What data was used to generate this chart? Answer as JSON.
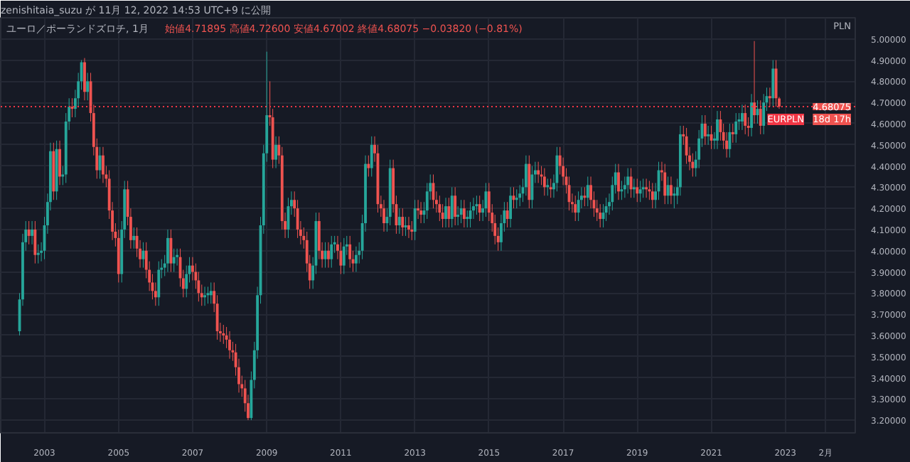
{
  "chart_data": {
    "type": "candlestick",
    "title": "ユーロ／ポーランドズロチ, 1月",
    "subtitle": "始値4.71895 高値4.72600 安値4.67002 終値4.68075 −0.03820 (−0.81%)",
    "ylabel": "PLN",
    "annotations": [
      "zenishitaia_suzu が 11月 12, 2022 14:53 UTC+9 に公開",
      {
        "text": "4.68075",
        "y": 4.68075
      },
      {
        "text": "18d 17h",
        "y": 4.68075
      }
    ],
    "x": [
      "2002-05-01",
      "2002-06-01",
      "2002-07-01",
      "2002-08-01",
      "2002-09-01",
      "2002-10-01",
      "2002-11-01",
      "2002-12-01",
      "2003-01-01",
      "2003-02-01",
      "2003-03-01",
      "2003-04-01",
      "2003-05-01",
      "2003-06-01",
      "2003-07-01",
      "2003-08-01",
      "2003-09-01",
      "2003-10-01",
      "2003-11-01",
      "2003-12-01",
      "2004-01-01",
      "2004-02-01",
      "2004-03-01",
      "2004-04-01",
      "2004-05-01",
      "2004-06-01",
      "2004-07-01",
      "2004-08-01",
      "2004-09-01",
      "2004-10-01",
      "2004-11-01",
      "2004-12-01",
      "2005-01-01",
      "2005-02-01",
      "2005-03-01",
      "2005-04-01",
      "2005-05-01",
      "2005-06-01",
      "2005-07-01",
      "2005-08-01",
      "2005-09-01",
      "2005-10-01",
      "2005-11-01",
      "2005-12-01",
      "2006-01-01",
      "2006-02-01",
      "2006-03-01",
      "2006-04-01",
      "2006-05-01",
      "2006-06-01",
      "2006-07-01",
      "2006-08-01",
      "2006-09-01",
      "2006-10-01",
      "2006-11-01",
      "2006-12-01",
      "2007-01-01",
      "2007-02-01",
      "2007-03-01",
      "2007-04-01",
      "2007-05-01",
      "2007-06-01",
      "2007-07-01",
      "2007-08-01",
      "2007-09-01",
      "2007-10-01",
      "2007-11-01",
      "2007-12-01",
      "2008-01-01",
      "2008-02-01",
      "2008-03-01",
      "2008-04-01",
      "2008-05-01",
      "2008-06-01",
      "2008-07-01",
      "2008-08-01",
      "2008-09-01",
      "2008-10-01",
      "2008-11-01",
      "2008-12-01",
      "2009-01-01",
      "2009-02-01",
      "2009-03-01",
      "2009-04-01",
      "2009-05-01",
      "2009-06-01",
      "2009-07-01",
      "2009-08-01",
      "2009-09-01",
      "2009-10-01",
      "2009-11-01",
      "2009-12-01",
      "2010-01-01",
      "2010-02-01",
      "2010-03-01",
      "2010-04-01",
      "2010-05-01",
      "2010-06-01",
      "2010-07-01",
      "2010-08-01",
      "2010-09-01",
      "2010-10-01",
      "2010-11-01",
      "2010-12-01",
      "2011-01-01",
      "2011-02-01",
      "2011-03-01",
      "2011-04-01",
      "2011-05-01",
      "2011-06-01",
      "2011-07-01",
      "2011-08-01",
      "2011-09-01",
      "2011-10-01",
      "2011-11-01",
      "2011-12-01",
      "2012-01-01",
      "2012-02-01",
      "2012-03-01",
      "2012-04-01",
      "2012-05-01",
      "2012-06-01",
      "2012-07-01",
      "2012-08-01",
      "2012-09-01",
      "2012-10-01",
      "2012-11-01",
      "2012-12-01",
      "2013-01-01",
      "2013-02-01",
      "2013-03-01",
      "2013-04-01",
      "2013-05-01",
      "2013-06-01",
      "2013-07-01",
      "2013-08-01",
      "2013-09-01",
      "2013-10-01",
      "2013-11-01",
      "2013-12-01",
      "2014-01-01",
      "2014-02-01",
      "2014-03-01",
      "2014-04-01",
      "2014-05-01",
      "2014-06-01",
      "2014-07-01",
      "2014-08-01",
      "2014-09-01",
      "2014-10-01",
      "2014-11-01",
      "2014-12-01",
      "2015-01-01",
      "2015-02-01",
      "2015-03-01",
      "2015-04-01",
      "2015-05-01",
      "2015-06-01",
      "2015-07-01",
      "2015-08-01",
      "2015-09-01",
      "2015-10-01",
      "2015-11-01",
      "2015-12-01",
      "2016-01-01",
      "2016-02-01",
      "2016-03-01",
      "2016-04-01",
      "2016-05-01",
      "2016-06-01",
      "2016-07-01",
      "2016-08-01",
      "2016-09-01",
      "2016-10-01",
      "2016-11-01",
      "2016-12-01",
      "2017-01-01",
      "2017-02-01",
      "2017-03-01",
      "2017-04-01",
      "2017-05-01",
      "2017-06-01",
      "2017-07-01",
      "2017-08-01",
      "2017-09-01",
      "2017-10-01",
      "2017-11-01",
      "2017-12-01",
      "2018-01-01",
      "2018-02-01",
      "2018-03-01",
      "2018-04-01",
      "2018-05-01",
      "2018-06-01",
      "2018-07-01",
      "2018-08-01",
      "2018-09-01",
      "2018-10-01",
      "2018-11-01",
      "2018-12-01",
      "2019-01-01",
      "2019-02-01",
      "2019-03-01",
      "2019-04-01",
      "2019-05-01",
      "2019-06-01",
      "2019-07-01",
      "2019-08-01",
      "2019-09-01",
      "2019-10-01",
      "2019-11-01",
      "2019-12-01",
      "2020-01-01",
      "2020-02-01",
      "2020-03-01",
      "2020-04-01",
      "2020-05-01",
      "2020-06-01",
      "2020-07-01",
      "2020-08-01",
      "2020-09-01",
      "2020-10-01",
      "2020-11-01",
      "2020-12-01",
      "2021-01-01",
      "2021-02-01",
      "2021-03-01",
      "2021-04-01",
      "2021-05-01",
      "2021-06-01",
      "2021-07-01",
      "2021-08-01",
      "2021-09-01",
      "2021-10-01",
      "2021-11-01",
      "2021-12-01",
      "2022-01-01",
      "2022-02-01",
      "2022-03-01",
      "2022-04-01",
      "2022-05-01",
      "2022-06-01",
      "2022-07-01",
      "2022-08-01",
      "2022-09-01",
      "2022-10-01",
      "2022-11-01"
    ],
    "ohlc": [
      [
        3.62,
        3.8,
        3.6,
        3.77
      ],
      [
        3.77,
        4.08,
        3.74,
        4.04
      ],
      [
        4.04,
        4.14,
        4.0,
        4.1
      ],
      [
        4.1,
        4.14,
        4.03,
        4.07
      ],
      [
        4.07,
        4.14,
        4.03,
        4.1
      ],
      [
        4.1,
        4.14,
        3.94,
        3.98
      ],
      [
        3.98,
        4.03,
        3.94,
        3.99
      ],
      [
        3.99,
        4.04,
        3.95,
        4.0
      ],
      [
        4.0,
        4.16,
        3.96,
        4.12
      ],
      [
        4.12,
        4.27,
        4.08,
        4.23
      ],
      [
        4.23,
        4.51,
        4.19,
        4.47
      ],
      [
        4.47,
        4.51,
        4.24,
        4.28
      ],
      [
        4.28,
        4.52,
        4.24,
        4.48
      ],
      [
        4.48,
        4.52,
        4.31,
        4.35
      ],
      [
        4.35,
        4.4,
        4.31,
        4.36
      ],
      [
        4.36,
        4.65,
        4.32,
        4.61
      ],
      [
        4.61,
        4.72,
        4.57,
        4.68
      ],
      [
        4.68,
        4.72,
        4.63,
        4.67
      ],
      [
        4.67,
        4.76,
        4.63,
        4.72
      ],
      [
        4.72,
        4.84,
        4.68,
        4.8
      ],
      [
        4.8,
        4.9,
        4.76,
        4.89
      ],
      [
        4.89,
        4.91,
        4.71,
        4.75
      ],
      [
        4.75,
        4.84,
        4.71,
        4.8
      ],
      [
        4.8,
        4.84,
        4.61,
        4.65
      ],
      [
        4.65,
        4.69,
        4.45,
        4.49
      ],
      [
        4.49,
        4.53,
        4.34,
        4.38
      ],
      [
        4.38,
        4.49,
        4.34,
        4.45
      ],
      [
        4.45,
        4.49,
        4.32,
        4.36
      ],
      [
        4.36,
        4.4,
        4.3,
        4.34
      ],
      [
        4.34,
        4.38,
        4.15,
        4.19
      ],
      [
        4.19,
        4.23,
        4.05,
        4.09
      ],
      [
        4.09,
        4.13,
        4.02,
        4.06
      ],
      [
        4.06,
        4.1,
        3.85,
        3.89
      ],
      [
        3.89,
        4.14,
        3.85,
        4.1
      ],
      [
        4.1,
        4.33,
        4.06,
        4.29
      ],
      [
        4.29,
        4.33,
        4.12,
        4.16
      ],
      [
        4.16,
        4.2,
        4.01,
        4.05
      ],
      [
        4.05,
        4.11,
        4.01,
        4.07
      ],
      [
        4.07,
        4.11,
        3.97,
        4.01
      ],
      [
        4.01,
        4.05,
        3.92,
        3.96
      ],
      [
        3.96,
        4.04,
        3.92,
        4.0
      ],
      [
        4.0,
        4.04,
        3.87,
        3.91
      ],
      [
        3.91,
        3.95,
        3.81,
        3.85
      ],
      [
        3.85,
        3.89,
        3.77,
        3.81
      ],
      [
        3.81,
        3.85,
        3.74,
        3.78
      ],
      [
        3.78,
        3.95,
        3.74,
        3.91
      ],
      [
        3.91,
        3.96,
        3.87,
        3.92
      ],
      [
        3.92,
        3.98,
        3.88,
        3.94
      ],
      [
        3.94,
        4.1,
        3.9,
        4.06
      ],
      [
        4.06,
        4.1,
        3.9,
        3.94
      ],
      [
        3.94,
        4.01,
        3.9,
        3.97
      ],
      [
        3.97,
        4.01,
        3.93,
        3.98
      ],
      [
        3.97,
        4.01,
        3.83,
        3.87
      ],
      [
        3.87,
        3.91,
        3.78,
        3.82
      ],
      [
        3.82,
        3.93,
        3.78,
        3.89
      ],
      [
        3.89,
        3.97,
        3.85,
        3.93
      ],
      [
        3.93,
        3.97,
        3.86,
        3.9
      ],
      [
        3.9,
        3.94,
        3.82,
        3.86
      ],
      [
        3.86,
        3.9,
        3.76,
        3.8
      ],
      [
        3.8,
        3.84,
        3.74,
        3.78
      ],
      [
        3.78,
        3.83,
        3.74,
        3.79
      ],
      [
        3.79,
        3.83,
        3.75,
        3.8
      ],
      [
        3.79,
        3.85,
        3.75,
        3.81
      ],
      [
        3.81,
        3.85,
        3.71,
        3.75
      ],
      [
        3.75,
        3.79,
        3.58,
        3.62
      ],
      [
        3.62,
        3.66,
        3.57,
        3.61
      ],
      [
        3.61,
        3.65,
        3.56,
        3.6
      ],
      [
        3.6,
        3.64,
        3.54,
        3.58
      ],
      [
        3.58,
        3.62,
        3.49,
        3.53
      ],
      [
        3.53,
        3.57,
        3.48,
        3.52
      ],
      [
        3.52,
        3.56,
        3.41,
        3.45
      ],
      [
        3.45,
        3.49,
        3.33,
        3.37
      ],
      [
        3.37,
        3.41,
        3.31,
        3.35
      ],
      [
        3.35,
        3.39,
        3.24,
        3.28
      ],
      [
        3.28,
        3.32,
        3.2,
        3.21
      ],
      [
        3.21,
        3.43,
        3.2,
        3.39
      ],
      [
        3.39,
        3.57,
        3.35,
        3.53
      ],
      [
        3.53,
        3.83,
        3.49,
        3.79
      ],
      [
        3.79,
        4.16,
        3.75,
        4.12
      ],
      [
        4.12,
        4.5,
        4.08,
        4.46
      ],
      [
        4.46,
        4.94,
        4.42,
        4.64
      ],
      [
        4.64,
        4.8,
        4.59,
        4.63
      ],
      [
        4.63,
        4.67,
        4.39,
        4.43
      ],
      [
        4.43,
        4.54,
        4.39,
        4.5
      ],
      [
        4.5,
        4.54,
        4.41,
        4.45
      ],
      [
        4.45,
        4.49,
        4.1,
        4.14
      ],
      [
        4.14,
        4.18,
        4.06,
        4.1
      ],
      [
        4.1,
        4.25,
        4.06,
        4.21
      ],
      [
        4.21,
        4.28,
        4.17,
        4.24
      ],
      [
        4.24,
        4.28,
        4.16,
        4.2
      ],
      [
        4.2,
        4.24,
        4.06,
        4.1
      ],
      [
        4.1,
        4.14,
        4.03,
        4.07
      ],
      [
        4.07,
        4.11,
        4.01,
        4.05
      ],
      [
        4.05,
        4.09,
        3.9,
        3.94
      ],
      [
        3.94,
        3.98,
        3.82,
        3.86
      ],
      [
        3.86,
        3.97,
        3.82,
        3.93
      ],
      [
        3.93,
        4.18,
        3.89,
        4.14
      ],
      [
        4.14,
        4.18,
        3.96,
        4.0
      ],
      [
        4.0,
        4.04,
        3.92,
        3.96
      ],
      [
        3.96,
        4.04,
        3.92,
        4.0
      ],
      [
        4.0,
        4.04,
        3.92,
        3.96
      ],
      [
        3.96,
        4.07,
        3.92,
        4.03
      ],
      [
        4.03,
        4.07,
        3.99,
        4.04
      ],
      [
        4.03,
        4.07,
        3.96,
        4.0
      ],
      [
        4.0,
        4.04,
        3.89,
        3.93
      ],
      [
        3.93,
        4.06,
        3.89,
        4.02
      ],
      [
        4.02,
        4.07,
        3.98,
        4.03
      ],
      [
        4.03,
        4.07,
        3.92,
        3.96
      ],
      [
        3.96,
        4.0,
        3.9,
        3.94
      ],
      [
        3.94,
        4.02,
        3.9,
        3.98
      ],
      [
        3.98,
        4.04,
        3.94,
        4.0
      ],
      [
        4.0,
        4.17,
        3.96,
        4.13
      ],
      [
        4.13,
        4.45,
        4.09,
        4.41
      ],
      [
        4.41,
        4.45,
        4.35,
        4.39
      ],
      [
        4.39,
        4.54,
        4.35,
        4.5
      ],
      [
        4.5,
        4.54,
        4.42,
        4.46
      ],
      [
        4.46,
        4.5,
        4.18,
        4.22
      ],
      [
        4.22,
        4.26,
        4.16,
        4.2
      ],
      [
        4.2,
        4.24,
        4.09,
        4.13
      ],
      [
        4.13,
        4.2,
        4.09,
        4.16
      ],
      [
        4.16,
        4.43,
        4.12,
        4.39
      ],
      [
        4.39,
        4.43,
        4.18,
        4.22
      ],
      [
        4.22,
        4.26,
        4.08,
        4.12
      ],
      [
        4.12,
        4.2,
        4.08,
        4.16
      ],
      [
        4.16,
        4.2,
        4.07,
        4.11
      ],
      [
        4.11,
        4.16,
        4.07,
        4.12
      ],
      [
        4.12,
        4.16,
        4.06,
        4.1
      ],
      [
        4.1,
        4.14,
        4.05,
        4.09
      ],
      [
        4.09,
        4.24,
        4.05,
        4.2
      ],
      [
        4.2,
        4.24,
        4.15,
        4.19
      ],
      [
        4.19,
        4.23,
        4.13,
        4.17
      ],
      [
        4.17,
        4.23,
        4.13,
        4.19
      ],
      [
        4.19,
        4.32,
        4.15,
        4.28
      ],
      [
        4.28,
        4.36,
        4.24,
        4.32
      ],
      [
        4.32,
        4.36,
        4.2,
        4.24
      ],
      [
        4.24,
        4.28,
        4.18,
        4.22
      ],
      [
        4.22,
        4.26,
        4.14,
        4.18
      ],
      [
        4.18,
        4.22,
        4.11,
        4.15
      ],
      [
        4.15,
        4.25,
        4.11,
        4.21
      ],
      [
        4.21,
        4.25,
        4.11,
        4.15
      ],
      [
        4.15,
        4.3,
        4.11,
        4.26
      ],
      [
        4.26,
        4.3,
        4.12,
        4.16
      ],
      [
        4.16,
        4.21,
        4.12,
        4.17
      ],
      [
        4.17,
        4.24,
        4.13,
        4.2
      ],
      [
        4.2,
        4.24,
        4.11,
        4.15
      ],
      [
        4.15,
        4.19,
        4.11,
        4.16
      ],
      [
        4.15,
        4.23,
        4.11,
        4.19
      ],
      [
        4.19,
        4.25,
        4.15,
        4.21
      ],
      [
        4.21,
        4.26,
        4.17,
        4.22
      ],
      [
        4.22,
        4.26,
        4.14,
        4.18
      ],
      [
        4.18,
        4.24,
        4.14,
        4.2
      ],
      [
        4.2,
        4.32,
        4.16,
        4.28
      ],
      [
        4.28,
        4.32,
        4.14,
        4.18
      ],
      [
        4.18,
        4.22,
        4.09,
        4.13
      ],
      [
        4.13,
        4.17,
        4.03,
        4.07
      ],
      [
        4.07,
        4.11,
        4.0,
        4.04
      ],
      [
        4.04,
        4.17,
        4.0,
        4.13
      ],
      [
        4.13,
        4.23,
        4.09,
        4.19
      ],
      [
        4.19,
        4.23,
        4.11,
        4.15
      ],
      [
        4.15,
        4.3,
        4.11,
        4.26
      ],
      [
        4.26,
        4.3,
        4.2,
        4.24
      ],
      [
        4.24,
        4.29,
        4.2,
        4.25
      ],
      [
        4.25,
        4.31,
        4.21,
        4.27
      ],
      [
        4.27,
        4.34,
        4.23,
        4.3
      ],
      [
        4.3,
        4.45,
        4.26,
        4.41
      ],
      [
        4.41,
        4.45,
        4.2,
        4.24
      ],
      [
        4.24,
        4.4,
        4.2,
        4.36
      ],
      [
        4.36,
        4.42,
        4.32,
        4.38
      ],
      [
        4.38,
        4.42,
        4.32,
        4.36
      ],
      [
        4.36,
        4.4,
        4.31,
        4.35
      ],
      [
        4.35,
        4.39,
        4.26,
        4.3
      ],
      [
        4.3,
        4.34,
        4.26,
        4.31
      ],
      [
        4.3,
        4.34,
        4.25,
        4.29
      ],
      [
        4.29,
        4.36,
        4.25,
        4.32
      ],
      [
        4.32,
        4.49,
        4.28,
        4.45
      ],
      [
        4.45,
        4.49,
        4.36,
        4.4
      ],
      [
        4.4,
        4.44,
        4.31,
        4.35
      ],
      [
        4.35,
        4.39,
        4.27,
        4.31
      ],
      [
        4.31,
        4.35,
        4.19,
        4.23
      ],
      [
        4.23,
        4.27,
        4.18,
        4.22
      ],
      [
        4.22,
        4.26,
        4.14,
        4.18
      ],
      [
        4.18,
        4.28,
        4.14,
        4.24
      ],
      [
        4.24,
        4.3,
        4.2,
        4.26
      ],
      [
        4.26,
        4.3,
        4.21,
        4.25
      ],
      [
        4.25,
        4.35,
        4.21,
        4.31
      ],
      [
        4.31,
        4.35,
        4.2,
        4.24
      ],
      [
        4.24,
        4.28,
        4.16,
        4.2
      ],
      [
        4.2,
        4.24,
        4.14,
        4.18
      ],
      [
        4.18,
        4.22,
        4.11,
        4.15
      ],
      [
        4.15,
        4.22,
        4.11,
        4.18
      ],
      [
        4.18,
        4.25,
        4.14,
        4.21
      ],
      [
        4.21,
        4.27,
        4.17,
        4.23
      ],
      [
        4.23,
        4.35,
        4.19,
        4.31
      ],
      [
        4.31,
        4.41,
        4.27,
        4.37
      ],
      [
        4.37,
        4.41,
        4.24,
        4.28
      ],
      [
        4.28,
        4.33,
        4.24,
        4.29
      ],
      [
        4.29,
        4.35,
        4.25,
        4.31
      ],
      [
        4.31,
        4.39,
        4.27,
        4.35
      ],
      [
        4.35,
        4.39,
        4.25,
        4.29
      ],
      [
        4.29,
        4.34,
        4.25,
        4.3
      ],
      [
        4.3,
        4.34,
        4.23,
        4.27
      ],
      [
        4.27,
        4.33,
        4.23,
        4.29
      ],
      [
        4.29,
        4.34,
        4.25,
        4.3
      ],
      [
        4.3,
        4.34,
        4.25,
        4.29
      ],
      [
        4.29,
        4.33,
        4.24,
        4.28
      ],
      [
        4.28,
        4.32,
        4.2,
        4.24
      ],
      [
        4.24,
        4.32,
        4.2,
        4.28
      ],
      [
        4.28,
        4.42,
        4.24,
        4.38
      ],
      [
        4.38,
        4.42,
        4.33,
        4.37
      ],
      [
        4.37,
        4.41,
        4.22,
        4.26
      ],
      [
        4.26,
        4.35,
        4.22,
        4.31
      ],
      [
        4.31,
        4.35,
        4.22,
        4.26
      ],
      [
        4.26,
        4.3,
        4.2,
        4.27
      ],
      [
        4.26,
        4.34,
        4.22,
        4.3
      ],
      [
        4.3,
        4.59,
        4.26,
        4.55
      ],
      [
        4.55,
        4.59,
        4.5,
        4.54
      ],
      [
        4.54,
        4.58,
        4.41,
        4.45
      ],
      [
        4.45,
        4.49,
        4.38,
        4.42
      ],
      [
        4.42,
        4.46,
        4.35,
        4.39
      ],
      [
        4.39,
        4.47,
        4.35,
        4.43
      ],
      [
        4.43,
        4.57,
        4.39,
        4.53
      ],
      [
        4.53,
        4.64,
        4.49,
        4.6
      ],
      [
        4.6,
        4.64,
        4.5,
        4.54
      ],
      [
        4.54,
        4.59,
        4.5,
        4.55
      ],
      [
        4.55,
        4.59,
        4.48,
        4.52
      ],
      [
        4.52,
        4.56,
        4.48,
        4.53
      ],
      [
        4.52,
        4.66,
        4.48,
        4.62
      ],
      [
        4.62,
        4.66,
        4.52,
        4.56
      ],
      [
        4.56,
        4.6,
        4.48,
        4.52
      ],
      [
        4.52,
        4.56,
        4.44,
        4.48
      ],
      [
        4.48,
        4.6,
        4.44,
        4.56
      ],
      [
        4.56,
        4.6,
        4.51,
        4.55
      ],
      [
        4.55,
        4.65,
        4.51,
        4.61
      ],
      [
        4.61,
        4.65,
        4.57,
        4.62
      ],
      [
        4.61,
        4.69,
        4.57,
        4.65
      ],
      [
        4.65,
        4.69,
        4.55,
        4.59
      ],
      [
        4.59,
        4.63,
        4.54,
        4.58
      ],
      [
        4.58,
        4.74,
        4.54,
        4.7
      ],
      [
        4.7,
        4.99,
        4.6,
        4.64
      ],
      [
        4.64,
        4.71,
        4.6,
        4.67
      ],
      [
        4.67,
        4.71,
        4.55,
        4.59
      ],
      [
        4.59,
        4.74,
        4.55,
        4.7
      ],
      [
        4.7,
        4.77,
        4.66,
        4.73
      ],
      [
        4.73,
        4.77,
        4.68,
        4.72
      ],
      [
        4.72,
        4.9,
        4.68,
        4.86
      ],
      [
        4.86,
        4.9,
        4.68,
        4.72
      ],
      [
        4.71895,
        4.726,
        4.67002,
        4.68075
      ]
    ],
    "xlim": [
      "2001-10-27",
      "2024-11-20"
    ],
    "ylim": [
      3.14,
      5.1
    ],
    "xticks": [
      {
        "value": "2003-01-01",
        "label": "2003"
      },
      {
        "value": "2005-01-01",
        "label": "2005"
      },
      {
        "value": "2007-01-01",
        "label": "2007"
      },
      {
        "value": "2009-01-01",
        "label": "2009"
      },
      {
        "value": "2011-01-01",
        "label": "2011"
      },
      {
        "value": "2013-01-01",
        "label": "2013"
      },
      {
        "value": "2015-01-01",
        "label": "2015"
      },
      {
        "value": "2017-01-01",
        "label": "2017"
      },
      {
        "value": "2019-01-01",
        "label": "2019"
      },
      {
        "value": "2021-01-01",
        "label": "2021"
      },
      {
        "value": "2023-01-01",
        "label": "2023"
      },
      {
        "value": "2024-02-01",
        "label": "2月"
      }
    ],
    "yticks": [
      {
        "value": 3.2,
        "label": "3.20000"
      },
      {
        "value": 3.3,
        "label": "3.30000"
      },
      {
        "value": 3.4,
        "label": "3.40000"
      },
      {
        "value": 3.5,
        "label": "3.50000"
      },
      {
        "value": 3.6,
        "label": "3.60000"
      },
      {
        "value": 3.7,
        "label": "3.70000"
      },
      {
        "value": 3.8,
        "label": "3.80000"
      },
      {
        "value": 3.9,
        "label": "3.90000"
      },
      {
        "value": 4.0,
        "label": "4.00000"
      },
      {
        "value": 4.1,
        "label": "4.10000"
      },
      {
        "value": 4.2,
        "label": "4.20000"
      },
      {
        "value": 4.3,
        "label": "4.30000"
      },
      {
        "value": 4.4,
        "label": "4.40000"
      },
      {
        "value": 4.5,
        "label": "4.50000"
      },
      {
        "value": 4.6,
        "label": "4.60000"
      },
      {
        "value": 4.7,
        "label": "4.70000"
      },
      {
        "value": 4.8,
        "label": "4.80000"
      },
      {
        "value": 4.9,
        "label": "4.90000"
      },
      {
        "value": 5.0,
        "label": "5.00000"
      }
    ],
    "grid": true,
    "ref_lines": [
      {
        "axis": "y",
        "value": 4.68075,
        "label": "EURPLN",
        "color": "#f23645",
        "line_style": "dotted"
      }
    ]
  }
}
